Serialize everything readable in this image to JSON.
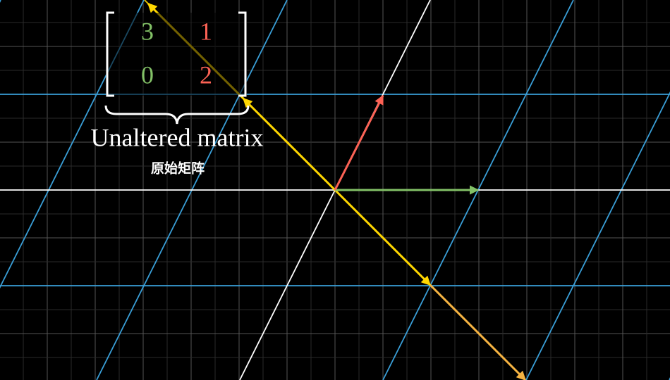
{
  "matrix": {
    "rows": [
      [
        3,
        1
      ],
      [
        0,
        2
      ]
    ]
  },
  "label": "Unaltered matrix",
  "subtitle": "原始矩阵"
}
